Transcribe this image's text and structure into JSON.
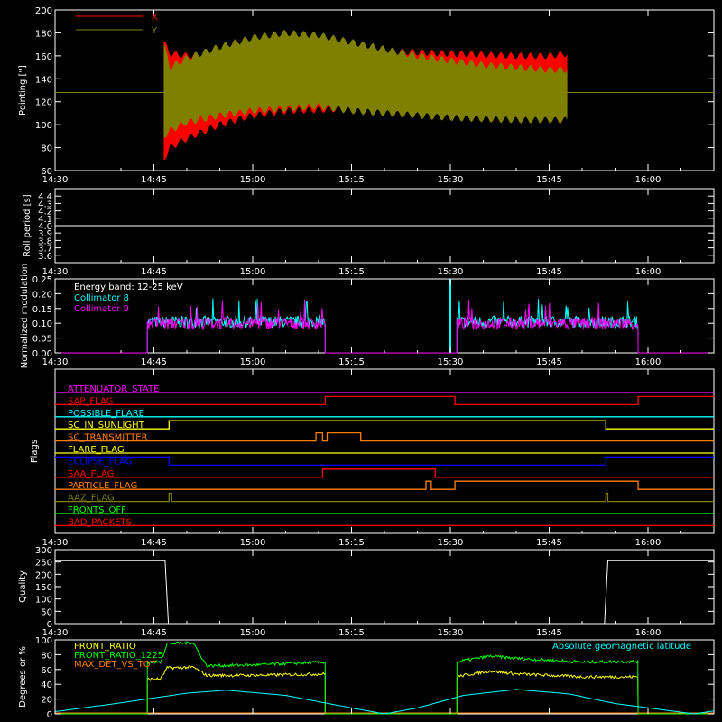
{
  "chart_data": [
    {
      "type": "line",
      "id": "pointing",
      "xlabel": "",
      "ylabel": "Pointing [\"]",
      "ylim": [
        60,
        200
      ],
      "yticks": [
        60,
        80,
        100,
        120,
        140,
        160,
        180,
        200
      ],
      "xlim_minutes": [
        0,
        100
      ],
      "xtick_labels": [
        "14:30",
        "14:45",
        "15:00",
        "15:15",
        "15:30",
        "15:45",
        "16:00"
      ],
      "xtick_minutes": [
        0,
        15,
        30,
        45,
        60,
        75,
        90
      ],
      "legend": [
        {
          "name": "X",
          "color": "#ff0000"
        },
        {
          "name": "Y",
          "color": "#808000"
        }
      ],
      "series": [
        {
          "name": "X",
          "color": "#ff0000",
          "data_start_minute": 16.5,
          "data_end_minute": 77.8,
          "envelope": {
            "t": [
              16.5,
              17.5,
              20,
              25,
              30,
              35,
              40,
              45,
              50,
              55,
              60,
              65,
              70,
              75,
              77.8
            ],
            "max": [
              172,
              162,
              160,
              162,
              164,
              166,
              166,
              165,
              164,
              163,
              162,
              161,
              160,
              160,
              162
            ],
            "min": [
              70,
              80,
              88,
              100,
              108,
              112,
              113,
              114,
              115,
              116,
              116,
              116,
              116,
              116,
              118
            ]
          }
        },
        {
          "name": "Y",
          "color": "#808000",
          "data_start_minute": 16.5,
          "data_end_minute": 77.8,
          "envelope": {
            "t": [
              16.5,
              17.5,
              20,
              25,
              30,
              35,
              40,
              45,
              50,
              55,
              60,
              65,
              70,
              75,
              77.8
            ],
            "max": [
              170,
              150,
              158,
              168,
              176,
              180,
              178,
              172,
              166,
              160,
              156,
              152,
              150,
              148,
              148
            ],
            "min": [
              90,
              95,
              102,
              108,
              112,
              114,
              116,
              112,
              110,
              108,
              106,
              105,
              104,
              104,
              104
            ]
          }
        }
      ],
      "reference_line": {
        "y": 128,
        "color": "#808000"
      }
    },
    {
      "type": "line",
      "id": "roll",
      "xlabel": "",
      "ylabel": "Roll period [s]",
      "ylim": [
        3.5,
        4.5
      ],
      "yticks": [
        3.6,
        3.7,
        3.8,
        3.9,
        4.0,
        4.1,
        4.2,
        4.3,
        4.4
      ],
      "ytick_labels": [
        "3.6",
        "3.7",
        "3.8",
        "3.9",
        "4.0",
        "4.1",
        "4.2",
        "4.3",
        "4.4"
      ],
      "xlim_minutes": [
        0,
        100
      ],
      "xtick_labels": [
        "14:30",
        "14:45",
        "15:00",
        "15:15",
        "15:30",
        "15:45",
        "16:00"
      ],
      "xtick_minutes": [
        0,
        15,
        30,
        45,
        60,
        75,
        90
      ],
      "series": [
        {
          "name": "",
          "color": "#ffffff",
          "x": [
            0,
            100
          ],
          "y": [
            4.0,
            4.0
          ]
        }
      ]
    },
    {
      "type": "line",
      "id": "modulation",
      "xlabel": "",
      "ylabel": "Normalized modulation",
      "ylim": [
        0,
        0.25
      ],
      "yticks": [
        0,
        0.05,
        0.1,
        0.15,
        0.2,
        0.25
      ],
      "ytick_labels": [
        "0.00",
        "0.05",
        "0.10",
        "0.15",
        "0.20",
        "0.25"
      ],
      "xlim_minutes": [
        0,
        100
      ],
      "xtick_labels": [
        "14:30",
        "14:45",
        "15:00",
        "15:15",
        "15:30",
        "15:45",
        "16:00"
      ],
      "xtick_minutes": [
        0,
        15,
        30,
        45,
        60,
        75,
        90
      ],
      "annotation": "Energy band: 12-25 keV",
      "series": [
        {
          "name": "Collimator 8",
          "color": "#00ffff",
          "segments": [
            [
              14.0,
              41.0
            ],
            [
              61.0,
              88.5
            ]
          ],
          "level": 0.105,
          "spike_minutes": [
            60.0
          ],
          "spike_value": 0.25
        },
        {
          "name": "Collimator 9",
          "color": "#ff00ff",
          "segments": [
            [
              14.0,
              41.0
            ],
            [
              61.0,
              88.5
            ]
          ],
          "level": 0.1
        }
      ]
    },
    {
      "type": "line",
      "id": "flags",
      "xlabel": "",
      "ylabel": "Flags",
      "xlim_minutes": [
        0,
        100
      ],
      "xtick_labels": [
        "14:30",
        "14:45",
        "15:00",
        "15:15",
        "15:30",
        "15:45",
        "16:00"
      ],
      "xtick_minutes": [
        0,
        15,
        30,
        45,
        60,
        75,
        90
      ],
      "series": [
        {
          "name": "ATTENUATOR_STATE",
          "color": "#ff00ff",
          "steps": [
            [
              0,
              0
            ]
          ]
        },
        {
          "name": "SAP_FLAG",
          "color": "#ff0000",
          "steps": [
            [
              0,
              0
            ],
            [
              41,
              1
            ],
            [
              60.7,
              0
            ],
            [
              88.5,
              1
            ]
          ]
        },
        {
          "name": "POSSIBLE_FLARE",
          "color": "#00ffff",
          "steps": [
            [
              0,
              0
            ]
          ]
        },
        {
          "name": "SC_IN_SUNLIGHT",
          "color": "#ffff00",
          "steps": [
            [
              0,
              0
            ],
            [
              17.3,
              1
            ],
            [
              83.6,
              0
            ]
          ]
        },
        {
          "name": "SC_TRANSMITTER",
          "color": "#ff8000",
          "steps": [
            [
              0,
              0
            ],
            [
              39.6,
              1
            ],
            [
              40.6,
              0
            ],
            [
              41.3,
              1
            ],
            [
              46.4,
              0
            ]
          ]
        },
        {
          "name": "FLARE_FLAG",
          "color": "#ffff00",
          "steps": [
            [
              0,
              0
            ]
          ]
        },
        {
          "name": "ECLIPSE_FLAG",
          "color": "#0000ff",
          "steps": [
            [
              0,
              1
            ],
            [
              17.3,
              0
            ],
            [
              83.6,
              1
            ]
          ]
        },
        {
          "name": "SAA_FLAG",
          "color": "#ff0000",
          "steps": [
            [
              0,
              0
            ],
            [
              40.6,
              1
            ],
            [
              57.7,
              0
            ]
          ]
        },
        {
          "name": "PARTICLE_FLAG",
          "color": "#ff8000",
          "steps": [
            [
              0,
              0
            ],
            [
              56.3,
              1
            ],
            [
              57.1,
              0
            ],
            [
              60.7,
              1
            ],
            [
              88.5,
              0
            ]
          ]
        },
        {
          "name": "AAZ_FLAG",
          "color": "#808000",
          "steps": [
            [
              0,
              0
            ],
            [
              17.3,
              1
            ],
            [
              17.7,
              0
            ],
            [
              83.6,
              1
            ],
            [
              83.9,
              0
            ]
          ]
        },
        {
          "name": "FRONTS_OFF",
          "color": "#00ff00",
          "steps": [
            [
              0,
              0
            ]
          ]
        },
        {
          "name": "BAD_PACKETS",
          "color": "#ff0000",
          "steps": [
            [
              0,
              0
            ]
          ]
        }
      ]
    },
    {
      "type": "line",
      "id": "quality",
      "xlabel": "",
      "ylabel": "Quality",
      "ylim": [
        0,
        300
      ],
      "yticks": [
        0,
        50,
        100,
        150,
        200,
        250,
        300
      ],
      "xlim_minutes": [
        0,
        100
      ],
      "xtick_labels": [
        "14:30",
        "14:45",
        "15:00",
        "15:15",
        "15:30",
        "15:45",
        "16:00"
      ],
      "xtick_minutes": [
        0,
        15,
        30,
        45,
        60,
        75,
        90
      ],
      "series": [
        {
          "name": "",
          "color": "#ffffff",
          "x": [
            0,
            16.7,
            17.2,
            83.4,
            83.9,
            100
          ],
          "y": [
            255,
            255,
            0,
            0,
            255,
            255
          ]
        }
      ]
    },
    {
      "type": "line",
      "id": "ratios",
      "xlabel": "",
      "ylabel": "Degrees or %",
      "ylim": [
        0,
        100
      ],
      "yticks": [
        0,
        20,
        40,
        60,
        80,
        100
      ],
      "xlim_minutes": [
        0,
        100
      ],
      "xtick_labels": [
        "14:30",
        "14:45",
        "15:00",
        "15:15",
        "15:30",
        "15:45",
        "16:00"
      ],
      "xtick_minutes": [
        0,
        15,
        30,
        45,
        60,
        75,
        90
      ],
      "series": [
        {
          "name": "FRONT_RATIO",
          "color": "#ffff00",
          "segments": [
            [
              14.0,
              41.0
            ],
            [
              61.0,
              88.5
            ]
          ],
          "profile": {
            "t": [
              14,
              16,
              17,
              21,
              23,
              30,
              41,
              61,
              62,
              66,
              70,
              80,
              88.5
            ],
            "y": [
              47,
              47,
              62,
              63,
              52,
              52,
              54,
              50,
              52,
              58,
              54,
              50,
              50
            ]
          }
        },
        {
          "name": "FRONT_RATIO_1225",
          "color": "#00ff00",
          "segments": [
            [
              14.0,
              41.0
            ],
            [
              61.0,
              88.5
            ]
          ],
          "profile": {
            "t": [
              14,
              16,
              17,
              21,
              23,
              30,
              41,
              61,
              62,
              66,
              70,
              80,
              88.5
            ],
            "y": [
              70,
              70,
              95,
              96,
              65,
              66,
              70,
              70,
              72,
              78,
              75,
              70,
              71
            ]
          }
        },
        {
          "name": "MAX_DET_VS_TOT",
          "color": "#ff8000",
          "x": [
            0,
            100
          ],
          "y": [
            0,
            0
          ]
        },
        {
          "name": "Absolute geomagnetic latitude",
          "color": "#00ffff",
          "curve": {
            "t": [
              0,
              10,
              20,
              26,
              35,
              45,
              50,
              55,
              62,
              70,
              78,
              85,
              97,
              100
            ],
            "y": [
              3,
              15,
              28,
              32,
              25,
              8,
              0,
              8,
              25,
              33,
              27,
              14,
              0,
              4
            ]
          }
        }
      ]
    }
  ]
}
